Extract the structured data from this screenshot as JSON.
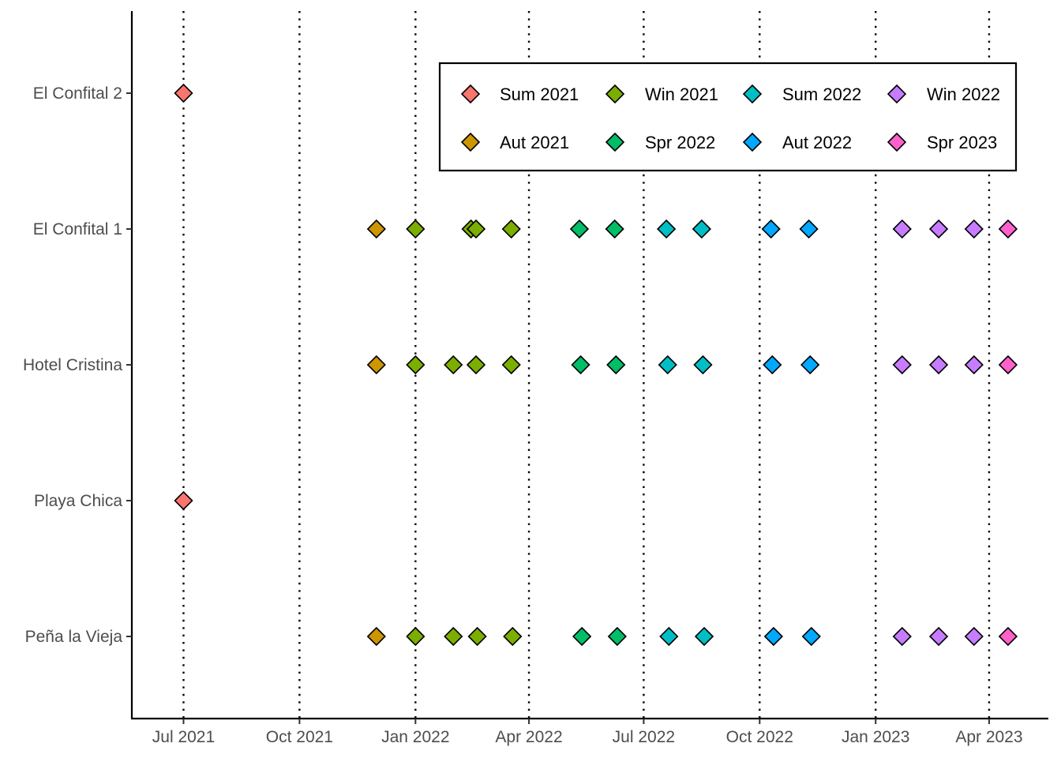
{
  "chart_data": {
    "type": "scatter",
    "title": "",
    "xlabel": "",
    "ylabel": "",
    "x_axis": {
      "scale": "date",
      "range": [
        "2021-05-21",
        "2023-05-18"
      ],
      "ticks": [
        {
          "date": "2021-07-01",
          "label": "Jul 2021"
        },
        {
          "date": "2021-10-01",
          "label": "Oct 2021"
        },
        {
          "date": "2022-01-01",
          "label": "Jan 2022"
        },
        {
          "date": "2022-04-01",
          "label": "Apr 2022"
        },
        {
          "date": "2022-07-01",
          "label": "Jul 2022"
        },
        {
          "date": "2022-10-01",
          "label": "Oct 2022"
        },
        {
          "date": "2023-01-01",
          "label": "Jan 2023"
        },
        {
          "date": "2023-04-01",
          "label": "Apr 2023"
        }
      ],
      "vertical_dotted_lines_at_ticks": true
    },
    "y_axis": {
      "categories": [
        "Peña la Vieja",
        "Playa Chica",
        "Hotel Cristina",
        "El Confital 1",
        "El Confital 2"
      ]
    },
    "grid": false,
    "legend": {
      "position": "inside-top-right",
      "border": true,
      "columns": 4
    },
    "series": [
      {
        "name": "Sum 2021",
        "color": "#F8766D",
        "points": [
          {
            "site": "El Confital 2",
            "date": "2021-07-01"
          },
          {
            "site": "Playa Chica",
            "date": "2021-07-01"
          }
        ]
      },
      {
        "name": "Aut 2021",
        "color": "#CD9600",
        "points": [
          {
            "site": "El Confital 1",
            "date": "2021-12-01"
          },
          {
            "site": "Hotel Cristina",
            "date": "2021-12-01"
          },
          {
            "site": "Peña la Vieja",
            "date": "2021-12-01"
          }
        ]
      },
      {
        "name": "Win 2021",
        "color": "#7CAE00",
        "points": [
          {
            "site": "El Confital 1",
            "date": "2022-01-01"
          },
          {
            "site": "El Confital 1",
            "date": "2022-02-14"
          },
          {
            "site": "El Confital 1",
            "date": "2022-02-18"
          },
          {
            "site": "El Confital 1",
            "date": "2022-03-18"
          },
          {
            "site": "Hotel Cristina",
            "date": "2022-01-01"
          },
          {
            "site": "Hotel Cristina",
            "date": "2022-01-31"
          },
          {
            "site": "Hotel Cristina",
            "date": "2022-02-18"
          },
          {
            "site": "Hotel Cristina",
            "date": "2022-03-18"
          },
          {
            "site": "Peña la Vieja",
            "date": "2022-01-01"
          },
          {
            "site": "Peña la Vieja",
            "date": "2022-01-31"
          },
          {
            "site": "Peña la Vieja",
            "date": "2022-02-19"
          },
          {
            "site": "Peña la Vieja",
            "date": "2022-03-19"
          }
        ]
      },
      {
        "name": "Spr 2022",
        "color": "#00BE67",
        "points": [
          {
            "site": "El Confital 1",
            "date": "2022-05-11"
          },
          {
            "site": "El Confital 1",
            "date": "2022-06-08"
          },
          {
            "site": "Hotel Cristina",
            "date": "2022-05-12"
          },
          {
            "site": "Hotel Cristina",
            "date": "2022-06-09"
          },
          {
            "site": "Peña la Vieja",
            "date": "2022-05-13"
          },
          {
            "site": "Peña la Vieja",
            "date": "2022-06-10"
          }
        ]
      },
      {
        "name": "Sum 2022",
        "color": "#00BFC4",
        "points": [
          {
            "site": "El Confital 1",
            "date": "2022-07-19"
          },
          {
            "site": "El Confital 1",
            "date": "2022-08-16"
          },
          {
            "site": "Hotel Cristina",
            "date": "2022-07-20"
          },
          {
            "site": "Hotel Cristina",
            "date": "2022-08-17"
          },
          {
            "site": "Peña la Vieja",
            "date": "2022-07-21"
          },
          {
            "site": "Peña la Vieja",
            "date": "2022-08-18"
          }
        ]
      },
      {
        "name": "Aut 2022",
        "color": "#00A9FF",
        "points": [
          {
            "site": "El Confital 1",
            "date": "2022-10-10"
          },
          {
            "site": "El Confital 1",
            "date": "2022-11-09"
          },
          {
            "site": "Hotel Cristina",
            "date": "2022-10-11"
          },
          {
            "site": "Hotel Cristina",
            "date": "2022-11-10"
          },
          {
            "site": "Peña la Vieja",
            "date": "2022-10-12"
          },
          {
            "site": "Peña la Vieja",
            "date": "2022-11-11"
          }
        ]
      },
      {
        "name": "Win 2022",
        "color": "#C77CFF",
        "points": [
          {
            "site": "El Confital 1",
            "date": "2023-01-22"
          },
          {
            "site": "El Confital 1",
            "date": "2023-02-20"
          },
          {
            "site": "El Confital 1",
            "date": "2023-03-20"
          },
          {
            "site": "Hotel Cristina",
            "date": "2023-01-22"
          },
          {
            "site": "Hotel Cristina",
            "date": "2023-02-20"
          },
          {
            "site": "Hotel Cristina",
            "date": "2023-03-20"
          },
          {
            "site": "Peña la Vieja",
            "date": "2023-01-22"
          },
          {
            "site": "Peña la Vieja",
            "date": "2023-02-20"
          },
          {
            "site": "Peña la Vieja",
            "date": "2023-03-20"
          }
        ]
      },
      {
        "name": "Spr 2023",
        "color": "#FF61CC",
        "points": [
          {
            "site": "El Confital 1",
            "date": "2023-04-16"
          },
          {
            "site": "Hotel Cristina",
            "date": "2023-04-16"
          },
          {
            "site": "Peña la Vieja",
            "date": "2023-04-16"
          }
        ]
      }
    ]
  }
}
